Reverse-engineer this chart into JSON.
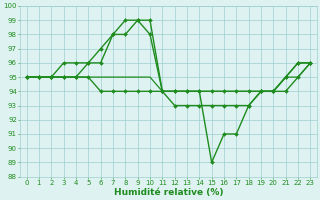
{
  "line1": {
    "x": [
      0,
      1,
      2,
      3,
      4,
      5,
      6,
      7,
      8,
      9,
      10,
      11,
      12,
      13,
      14,
      15,
      16,
      17,
      18,
      19,
      20,
      21,
      22,
      23
    ],
    "y": [
      95,
      95,
      95,
      96,
      96,
      96,
      97,
      98,
      99,
      99,
      99,
      94,
      93,
      93,
      93,
      93,
      93,
      93,
      93,
      94,
      94,
      95,
      96,
      96
    ],
    "color": "#1e8c1e",
    "marker": "D",
    "markersize": 2.0,
    "linewidth": 1.0
  },
  "line2": {
    "x": [
      0,
      1,
      2,
      3,
      4,
      5,
      6,
      7,
      8,
      9,
      10,
      11,
      12,
      13,
      14,
      15,
      16,
      17,
      18,
      19,
      20,
      21,
      22,
      23
    ],
    "y": [
      95,
      95,
      95,
      95,
      95,
      96,
      96,
      98,
      98,
      99,
      98,
      94,
      94,
      94,
      94,
      94,
      94,
      94,
      94,
      94,
      94,
      94,
      95,
      96
    ],
    "color": "#1e8c1e",
    "marker": "D",
    "markersize": 2.0,
    "linewidth": 1.0
  },
  "line3": {
    "x": [
      0,
      1,
      2,
      3,
      4,
      5,
      6,
      7,
      8,
      9,
      10,
      11,
      12,
      13,
      14,
      15,
      16,
      17,
      18,
      19,
      20,
      21,
      22,
      23
    ],
    "y": [
      95,
      95,
      95,
      95,
      95,
      95,
      95,
      95,
      95,
      95,
      95,
      94,
      94,
      94,
      94,
      94,
      94,
      94,
      94,
      94,
      94,
      95,
      95,
      96
    ],
    "color": "#1e8c1e",
    "marker": null,
    "linewidth": 0.9
  },
  "line4": {
    "x": [
      0,
      1,
      2,
      3,
      4,
      5,
      6,
      7,
      8,
      9,
      10,
      11,
      12,
      13,
      14,
      15,
      16,
      17,
      18,
      19,
      20,
      21,
      22,
      23
    ],
    "y": [
      95,
      95,
      95,
      95,
      95,
      95,
      94,
      94,
      94,
      94,
      94,
      94,
      94,
      94,
      94,
      89,
      91,
      91,
      93,
      94,
      94,
      95,
      96,
      96
    ],
    "color": "#1e8c1e",
    "marker": "D",
    "markersize": 2.0,
    "linewidth": 1.0
  },
  "bg_color": "#dff2f2",
  "grid_color": "#9ecfcf",
  "xlabel": "Humidité relative (%)",
  "xlabel_color": "#1e8c1e",
  "xlabel_fontsize": 6.5,
  "tick_color": "#1e8c1e",
  "tick_fontsize": 5.0,
  "ylim": [
    88,
    100
  ],
  "xlim": [
    -0.5,
    23.5
  ],
  "yticks": [
    88,
    89,
    90,
    91,
    92,
    93,
    94,
    95,
    96,
    97,
    98,
    99,
    100
  ],
  "xticks": [
    0,
    1,
    2,
    3,
    4,
    5,
    6,
    7,
    8,
    9,
    10,
    11,
    12,
    13,
    14,
    15,
    16,
    17,
    18,
    19,
    20,
    21,
    22,
    23
  ]
}
